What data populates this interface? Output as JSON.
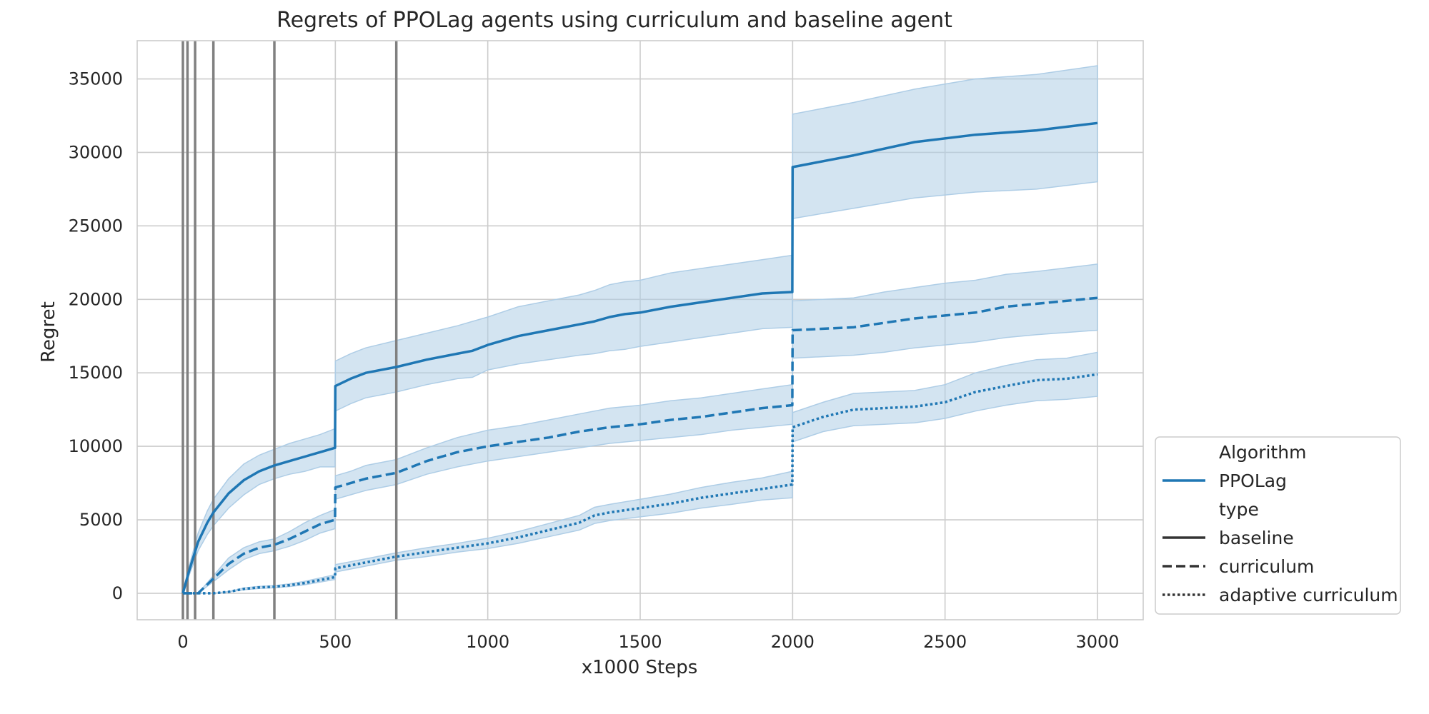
{
  "chart_data": {
    "type": "line",
    "title": "Regrets of PPOLag agents using curriculum and baseline agent",
    "xlabel": "x1000 Steps",
    "ylabel": "Regret",
    "xlim": [
      -150,
      3150
    ],
    "ylim": [
      -1800,
      37600
    ],
    "xticks": [
      0,
      500,
      1000,
      1500,
      2000,
      2500,
      3000
    ],
    "xtick_labels": [
      "0",
      "500",
      "1000",
      "1500",
      "2000",
      "2500",
      "3000"
    ],
    "yticks": [
      0,
      5000,
      10000,
      15000,
      20000,
      25000,
      30000,
      35000
    ],
    "ytick_labels": [
      "0",
      "5000",
      "10000",
      "15000",
      "20000",
      "25000",
      "30000",
      "35000"
    ],
    "grid": true,
    "legend_position": "lower-right-outside",
    "color": "#1f77b4",
    "band_color": "#aecde6",
    "vline_color": "#808080",
    "vertical_lines_x": [
      0,
      15,
      40,
      100,
      300,
      700
    ],
    "series": [
      {
        "style": "solid",
        "x": [
          0,
          20,
          50,
          80,
          100,
          150,
          200,
          250,
          300,
          350,
          400,
          450,
          499,
          500,
          550,
          600,
          700,
          800,
          900,
          950,
          1000,
          1100,
          1200,
          1300,
          1350,
          1400,
          1450,
          1500,
          1600,
          1700,
          1800,
          1900,
          1999,
          2000,
          2200,
          2400,
          2600,
          2800,
          3000
        ],
        "y": [
          0,
          1500,
          3500,
          4800,
          5500,
          6800,
          7700,
          8300,
          8700,
          9000,
          9300,
          9600,
          9900,
          14100,
          14600,
          15000,
          15400,
          15900,
          16300,
          16500,
          16900,
          17500,
          17900,
          18300,
          18500,
          18800,
          19000,
          19100,
          19500,
          19800,
          20100,
          20400,
          20500,
          29000,
          29800,
          30700,
          31200,
          31500,
          32000
        ],
        "lower": [
          0,
          1200,
          2900,
          4000,
          4600,
          5800,
          6700,
          7400,
          7800,
          8100,
          8300,
          8600,
          8600,
          12400,
          12900,
          13300,
          13700,
          14200,
          14600,
          14700,
          15200,
          15600,
          15900,
          16200,
          16300,
          16500,
          16600,
          16800,
          17100,
          17400,
          17700,
          18000,
          18100,
          25500,
          26200,
          26900,
          27300,
          27500,
          28000
        ],
        "upper": [
          0,
          1800,
          4100,
          5600,
          6400,
          7800,
          8800,
          9400,
          9800,
          10200,
          10500,
          10800,
          11200,
          15800,
          16300,
          16700,
          17200,
          17700,
          18200,
          18500,
          18800,
          19500,
          19900,
          20300,
          20600,
          21000,
          21200,
          21300,
          21800,
          22100,
          22400,
          22700,
          23000,
          32600,
          33400,
          34300,
          35000,
          35300,
          35900
        ]
      },
      {
        "style": "dashed",
        "x": [
          0,
          50,
          100,
          150,
          200,
          250,
          300,
          350,
          400,
          450,
          499,
          500,
          550,
          600,
          700,
          800,
          900,
          1000,
          1100,
          1200,
          1300,
          1400,
          1500,
          1600,
          1700,
          1800,
          1900,
          1999,
          2000,
          2200,
          2300,
          2400,
          2500,
          2600,
          2700,
          2800,
          3000
        ],
        "y": [
          0,
          0,
          1000,
          2000,
          2700,
          3100,
          3300,
          3700,
          4200,
          4700,
          5000,
          7200,
          7500,
          7800,
          8200,
          9000,
          9600,
          10000,
          10300,
          10600,
          11000,
          11300,
          11500,
          11800,
          12000,
          12300,
          12600,
          12800,
          17900,
          18100,
          18400,
          18700,
          18900,
          19100,
          19500,
          19700,
          20100
        ],
        "lower": [
          0,
          0,
          800,
          1600,
          2300,
          2700,
          2900,
          3200,
          3600,
          4100,
          4400,
          6400,
          6700,
          7000,
          7400,
          8100,
          8600,
          9000,
          9300,
          9600,
          9900,
          10200,
          10400,
          10600,
          10800,
          11100,
          11300,
          11500,
          16000,
          16200,
          16400,
          16700,
          16900,
          17100,
          17400,
          17600,
          17900
        ],
        "upper": [
          0,
          0,
          1200,
          2400,
          3100,
          3500,
          3700,
          4200,
          4800,
          5300,
          5700,
          8000,
          8300,
          8700,
          9100,
          9900,
          10600,
          11100,
          11400,
          11800,
          12200,
          12600,
          12800,
          13100,
          13300,
          13600,
          13900,
          14200,
          19900,
          20100,
          20500,
          20800,
          21100,
          21300,
          21700,
          21900,
          22400
        ]
      },
      {
        "style": "dotted",
        "x": [
          0,
          50,
          100,
          150,
          200,
          250,
          300,
          350,
          400,
          450,
          499,
          500,
          550,
          600,
          700,
          800,
          900,
          1000,
          1100,
          1200,
          1300,
          1350,
          1400,
          1500,
          1600,
          1700,
          1800,
          1900,
          1999,
          2000,
          2100,
          2200,
          2300,
          2400,
          2500,
          2600,
          2700,
          2800,
          2900,
          3000
        ],
        "y": [
          0,
          0,
          0,
          100,
          300,
          400,
          450,
          550,
          700,
          900,
          1100,
          1700,
          1900,
          2100,
          2500,
          2800,
          3100,
          3400,
          3800,
          4300,
          4800,
          5300,
          5500,
          5800,
          6100,
          6500,
          6800,
          7100,
          7400,
          11300,
          12000,
          12500,
          12600,
          12700,
          13000,
          13700,
          14100,
          14500,
          14600,
          14900
        ],
        "lower": [
          0,
          0,
          0,
          80,
          240,
          330,
          380,
          460,
          580,
          760,
          940,
          1450,
          1650,
          1850,
          2250,
          2500,
          2800,
          3050,
          3400,
          3850,
          4300,
          4750,
          4950,
          5200,
          5450,
          5800,
          6050,
          6350,
          6500,
          10300,
          11000,
          11400,
          11500,
          11600,
          11900,
          12400,
          12800,
          13100,
          13200,
          13400
        ],
        "upper": [
          0,
          0,
          0,
          120,
          360,
          470,
          520,
          640,
          820,
          1040,
          1260,
          1950,
          2150,
          2350,
          2750,
          3100,
          3400,
          3750,
          4200,
          4750,
          5300,
          5850,
          6050,
          6400,
          6750,
          7200,
          7550,
          7850,
          8300,
          12300,
          13000,
          13600,
          13700,
          13800,
          14200,
          15000,
          15500,
          15900,
          16000,
          16400
        ]
      }
    ],
    "legend": {
      "hue_title": "Algorithm",
      "hue_entries": [
        "PPOLag"
      ],
      "style_title": "type",
      "style_entries": [
        {
          "label": "baseline",
          "style": "solid"
        },
        {
          "label": "curriculum",
          "style": "dashed"
        },
        {
          "label": "adaptive curriculum",
          "style": "dotted"
        }
      ]
    }
  }
}
